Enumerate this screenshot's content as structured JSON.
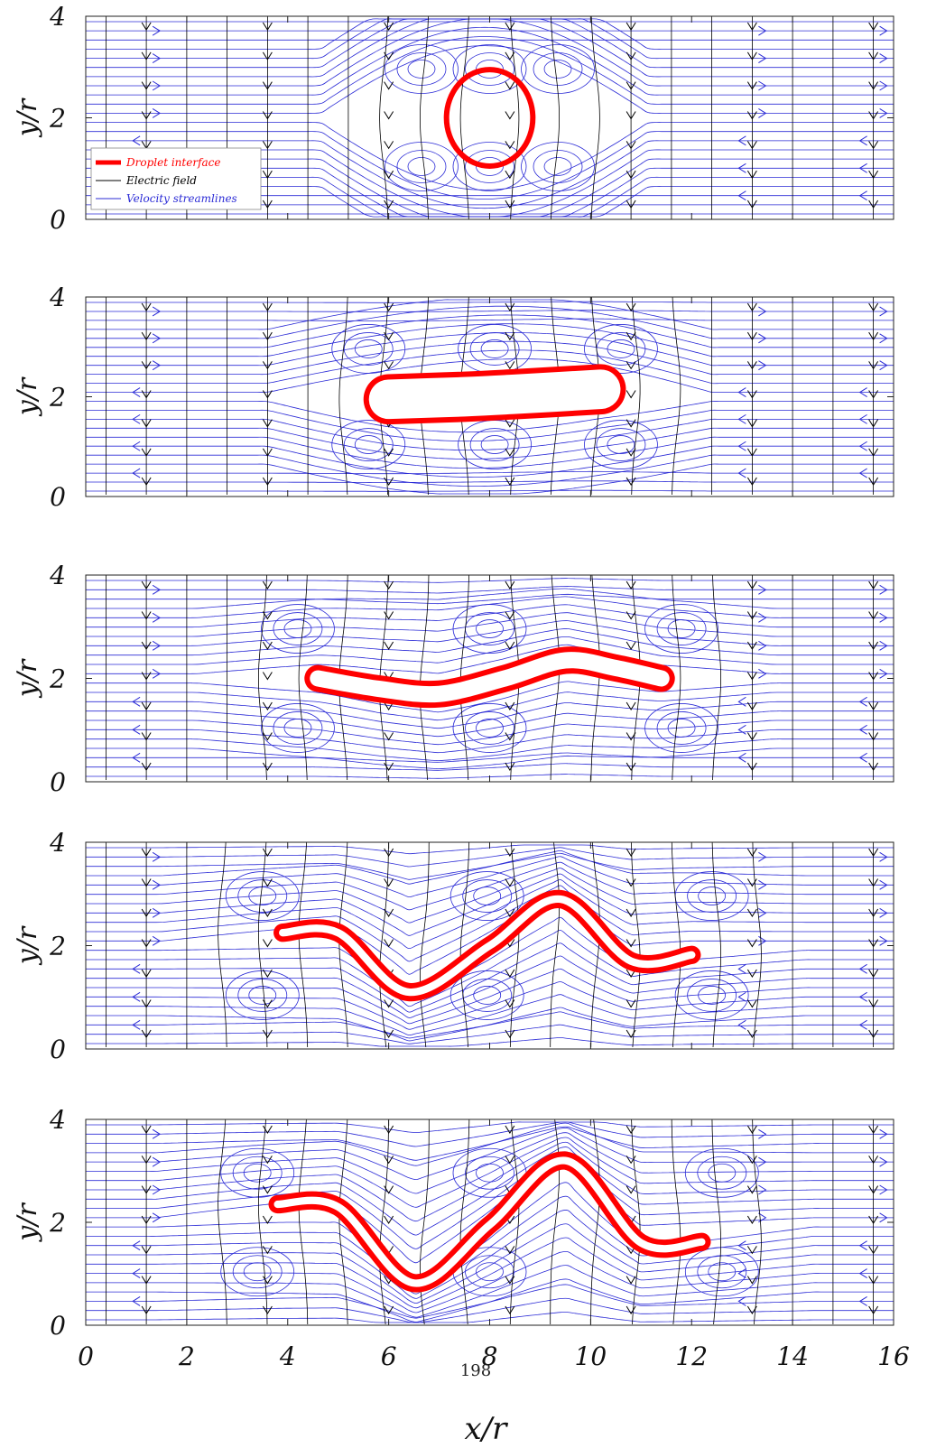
{
  "chart_data": {
    "type": "line",
    "xlabel": "x/r",
    "ylabel": "y/r",
    "xlim": [
      0,
      16
    ],
    "ylim": [
      0,
      4
    ],
    "x_ticks": [
      "0",
      "2",
      "4",
      "6",
      "8",
      "10",
      "12",
      "14",
      "16"
    ],
    "y_ticks": [
      "0",
      "2",
      "4"
    ],
    "legend": {
      "placement": "left-middle of first panel",
      "entries": [
        {
          "label": "Droplet interface",
          "color": "#ff0000"
        },
        {
          "label": "Electric field",
          "color": "#000000"
        },
        {
          "label": "Velocity streamlines",
          "color": "#2b2bd6"
        }
      ]
    },
    "series_colors": {
      "droplet": "#ff0000",
      "electric_field": "#000000",
      "streamlines": "#2b2bd6"
    },
    "electric_field_x": [
      0.4,
      1.2,
      2.0,
      2.8,
      3.6,
      4.4,
      5.2,
      6.0,
      6.8,
      7.6,
      8.4,
      9.2,
      10.0,
      10.8,
      11.6,
      12.4,
      13.2,
      14.0,
      14.8,
      15.6
    ],
    "panels": [
      {
        "name": "panel 1",
        "droplet_centerline": [
          [
            7.0,
            2.0
          ],
          [
            8.0,
            2.0
          ],
          [
            9.0,
            2.0
          ]
        ],
        "droplet_thickness": 1.9,
        "droplet_circle": {
          "cx": 8.0,
          "cy": 2.0,
          "r": 0.95
        }
      },
      {
        "name": "panel 2",
        "droplet_centerline": [
          [
            6.0,
            1.95
          ],
          [
            7.5,
            2.0
          ],
          [
            8.5,
            2.05
          ],
          [
            10.2,
            2.15
          ]
        ],
        "droplet_thickness": 0.9
      },
      {
        "name": "panel 3",
        "droplet_centerline": [
          [
            4.6,
            2.0
          ],
          [
            5.8,
            1.8
          ],
          [
            7.0,
            1.7
          ],
          [
            8.3,
            2.0
          ],
          [
            9.5,
            2.35
          ],
          [
            10.5,
            2.2
          ],
          [
            11.4,
            2.0
          ]
        ],
        "droplet_thickness": 0.42
      },
      {
        "name": "panel 4",
        "droplet_centerline": [
          [
            3.9,
            2.25
          ],
          [
            5.0,
            2.25
          ],
          [
            6.4,
            1.1
          ],
          [
            8.0,
            2.0
          ],
          [
            9.4,
            2.9
          ],
          [
            10.8,
            1.7
          ],
          [
            12.0,
            1.82
          ]
        ],
        "droplet_thickness": 0.25
      },
      {
        "name": "panel 5",
        "droplet_centerline": [
          [
            3.8,
            2.35
          ],
          [
            5.0,
            2.3
          ],
          [
            6.5,
            0.82
          ],
          [
            8.0,
            1.95
          ],
          [
            9.5,
            3.2
          ],
          [
            11.0,
            1.6
          ],
          [
            12.2,
            1.62
          ]
        ],
        "droplet_thickness": 0.25
      }
    ],
    "page_number": "198"
  }
}
